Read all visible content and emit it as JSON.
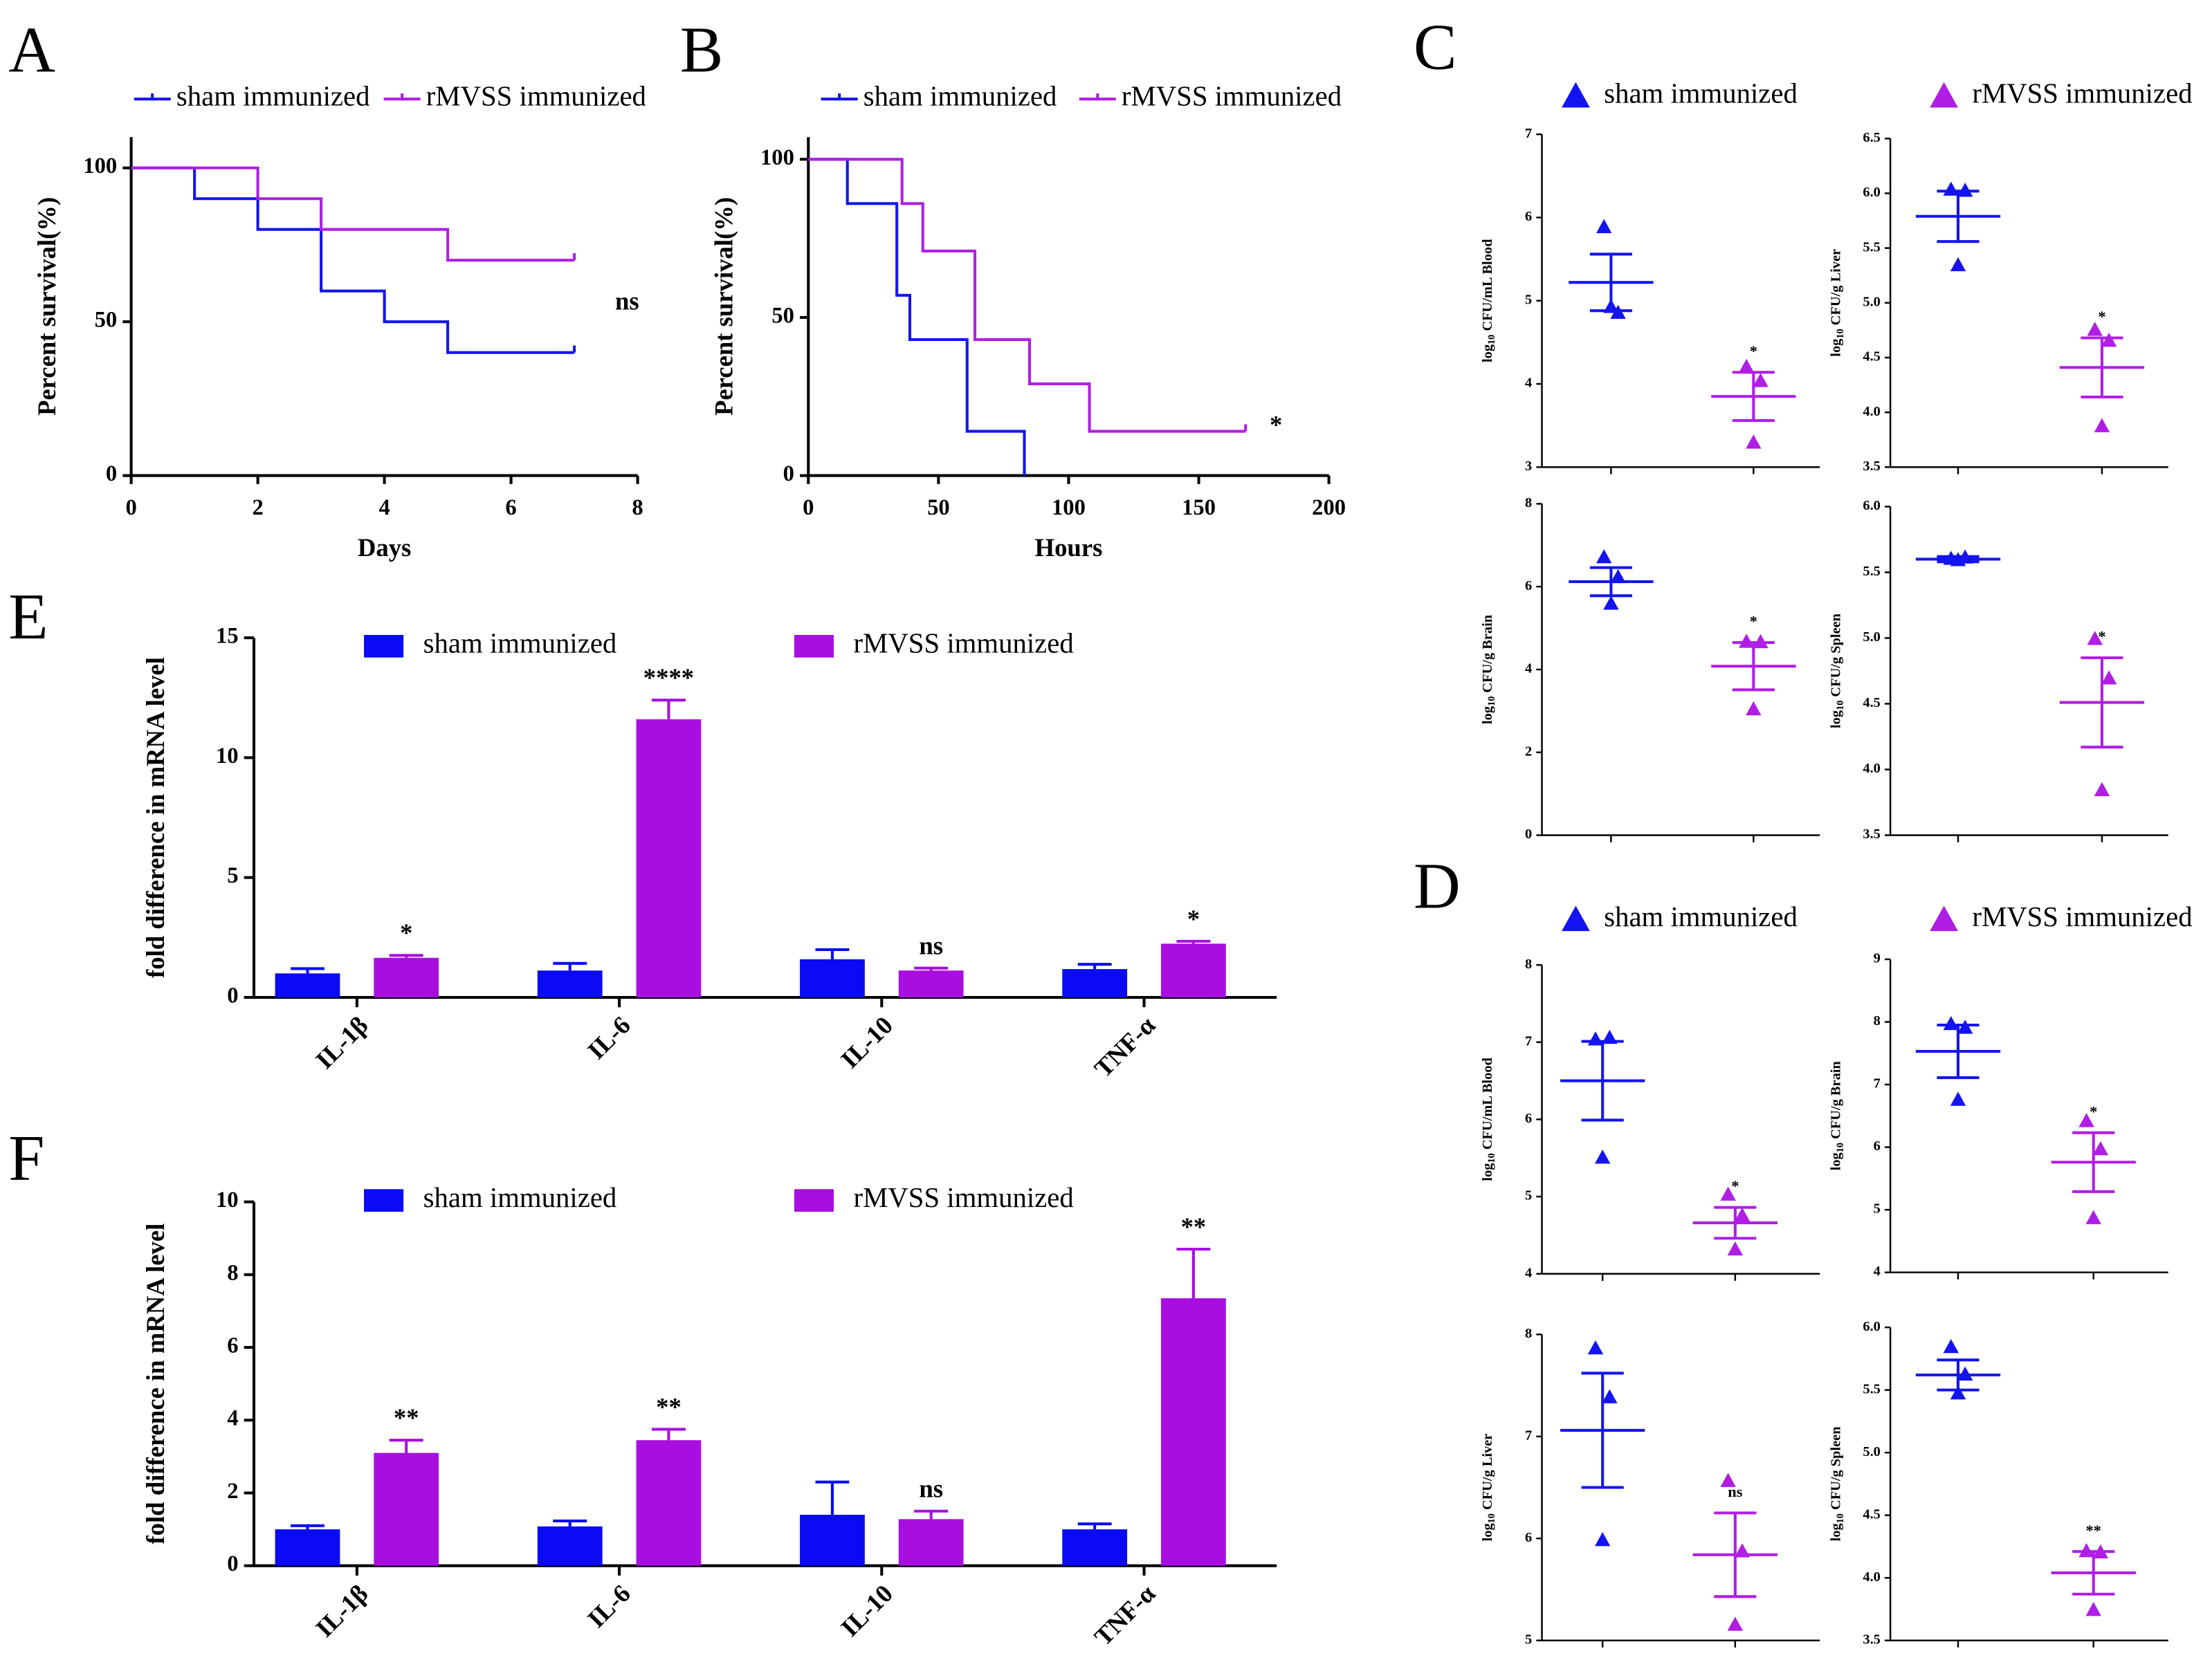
{
  "chart_data": [
    {
      "type": "step",
      "panel": "A",
      "xlabel": "Days",
      "ylabel": "Percent survival(%)",
      "xlim": [
        0,
        8
      ],
      "xticks": [
        0,
        2,
        4,
        6,
        8
      ],
      "ylim": [
        0,
        110
      ],
      "yticks": [
        0,
        50,
        100
      ],
      "annotation": "ns",
      "series": [
        {
          "name": "sham immunized",
          "color": "#1414f0",
          "x": [
            0,
            1,
            2,
            3,
            4,
            5,
            7
          ],
          "values": [
            100,
            90,
            80,
            60,
            50,
            40,
            40
          ]
        },
        {
          "name": "rMVSS immunized",
          "color": "#b01ee6",
          "x": [
            0,
            2,
            3,
            5,
            7
          ],
          "values": [
            100,
            90,
            80,
            70,
            70
          ]
        }
      ]
    },
    {
      "type": "step",
      "panel": "B",
      "xlabel": "Hours",
      "ylabel": "Percent survival(%)",
      "xlim": [
        0,
        200
      ],
      "xticks": [
        0,
        50,
        100,
        150,
        200
      ],
      "ylim": [
        0,
        107
      ],
      "yticks": [
        0,
        50,
        100
      ],
      "annotation": "*",
      "series": [
        {
          "name": "sham immunized",
          "color": "#1414f0",
          "x": [
            0,
            15,
            34,
            39,
            61,
            83
          ],
          "values": [
            100,
            86,
            57,
            43,
            14,
            0
          ]
        },
        {
          "name": "rMVSS immunized",
          "color": "#b01ee6",
          "x": [
            0,
            36,
            44,
            64,
            85,
            108,
            168
          ],
          "values": [
            100,
            86,
            71,
            43,
            29,
            14,
            14
          ]
        }
      ]
    },
    {
      "type": "dotplot",
      "panel": "C",
      "series": [
        {
          "name": "sham immunized",
          "color": "#1414f0"
        },
        {
          "name": "rMVSS immunized",
          "color": "#b01ee6"
        }
      ],
      "subplots": [
        {
          "ylabel": [
            "log",
            "10",
            " CFU/mL Blood"
          ],
          "ylim": [
            3,
            7
          ],
          "yticks": [
            3,
            4,
            5,
            6,
            7
          ],
          "groups": [
            {
              "values": [
                5.88,
                4.85,
                4.92
              ],
              "mean": 5.22,
              "sem": 0.34
            },
            {
              "values": [
                4.2,
                4.03,
                3.29
              ],
              "mean": 3.85,
              "sem": 0.29,
              "annotation": "*"
            }
          ]
        },
        {
          "ylabel": [
            "log",
            "10",
            " CFU/g Liver"
          ],
          "ylim": [
            3.5,
            6.5
          ],
          "yticks": [
            {
              "value": 3.5,
              "label": "3.5"
            },
            {
              "value": 4,
              "label": "4.0"
            },
            {
              "value": 4.5,
              "label": "4.5"
            },
            {
              "value": 5,
              "label": "5.0"
            },
            {
              "value": 5.5,
              "label": "5.5"
            },
            {
              "value": 6,
              "label": "6.0"
            },
            {
              "value": 6.5,
              "label": "6.5"
            }
          ],
          "groups": [
            {
              "values": [
                6.03,
                6.02,
                5.34
              ],
              "mean": 5.79,
              "sem": 0.23
            },
            {
              "values": [
                4.75,
                4.65,
                3.87
              ],
              "mean": 4.41,
              "sem": 0.27,
              "annotation": "*"
            }
          ]
        },
        {
          "ylabel": [
            "log",
            "10",
            " CFU/g Brain"
          ],
          "ylim": [
            0,
            8
          ],
          "yticks": [
            0,
            2,
            4,
            6,
            8
          ],
          "groups": [
            {
              "values": [
                6.7,
                6.22,
                5.58
              ],
              "mean": 6.12,
              "sem": 0.34
            },
            {
              "values": [
                4.66,
                4.65,
                3.03
              ],
              "mean": 4.08,
              "sem": 0.57,
              "annotation": "*"
            }
          ]
        },
        {
          "ylabel": [
            "log",
            "10",
            " CFU/g Spleen"
          ],
          "ylim": [
            3.5,
            6
          ],
          "yticks": [
            {
              "value": 3.5,
              "label": "3.5"
            },
            {
              "value": 4,
              "label": "4.0"
            },
            {
              "value": 4.5,
              "label": "4.5"
            },
            {
              "value": 5,
              "label": "5.0"
            },
            {
              "value": 5.5,
              "label": "5.5"
            },
            {
              "value": 6,
              "label": "6.0"
            }
          ],
          "groups": [
            {
              "values": [
                5.6,
                5.61,
                5.59
              ],
              "mean": 5.6,
              "sem": 0.02
            },
            {
              "values": [
                4.99,
                4.69,
                3.84
              ],
              "mean": 4.51,
              "sem": 0.34,
              "annotation": "*"
            }
          ]
        }
      ]
    },
    {
      "type": "dotplot",
      "panel": "D",
      "series": [
        {
          "name": "sham immunized",
          "color": "#1414f0"
        },
        {
          "name": "rMVSS immunized",
          "color": "#b01ee6"
        }
      ],
      "subplots": [
        {
          "ylabel": [
            "log",
            "10",
            " CFU/mL Blood"
          ],
          "ylim": [
            4,
            8
          ],
          "yticks": [
            4,
            5,
            6,
            7,
            8
          ],
          "groups": [
            {
              "values": [
                7.03,
                7.05,
                5.5
              ],
              "mean": 6.5,
              "sem": 0.51
            },
            {
              "values": [
                5.02,
                4.75,
                4.31
              ],
              "mean": 4.66,
              "sem": 0.2,
              "annotation": "*"
            }
          ]
        },
        {
          "ylabel": [
            "log",
            "10",
            " CFU/g Brain"
          ],
          "ylim": [
            4,
            9
          ],
          "yticks": [
            4,
            5,
            6,
            7,
            8,
            9
          ],
          "groups": [
            {
              "values": [
                7.96,
                7.9,
                6.75
              ],
              "mean": 7.53,
              "sem": 0.42
            },
            {
              "values": [
                6.41,
                5.96,
                4.86
              ],
              "mean": 5.76,
              "sem": 0.47,
              "annotation": "*"
            }
          ]
        },
        {
          "ylabel": [
            "log",
            "10",
            " CFU/g Liver"
          ],
          "ylim": [
            5,
            8
          ],
          "yticks": [
            5,
            6,
            7,
            8
          ],
          "groups": [
            {
              "values": [
                7.86,
                7.38,
                5.98
              ],
              "mean": 7.06,
              "sem": 0.56
            },
            {
              "values": [
                6.56,
                5.87,
                5.15
              ],
              "mean": 5.84,
              "sem": 0.41,
              "annotation": "ns"
            }
          ]
        },
        {
          "ylabel": [
            "log",
            "10",
            " CFU/g Spleen"
          ],
          "ylim": [
            3.5,
            6
          ],
          "yticks": [
            {
              "value": 3.5,
              "label": "3.5"
            },
            {
              "value": 4,
              "label": "4.0"
            },
            {
              "value": 4.5,
              "label": "4.5"
            },
            {
              "value": 5,
              "label": "5.0"
            },
            {
              "value": 5.5,
              "label": "5.5"
            },
            {
              "value": 6,
              "label": "6.0"
            }
          ],
          "groups": [
            {
              "values": [
                5.84,
                5.62,
                5.47
              ],
              "mean": 5.62,
              "sem": 0.12
            },
            {
              "values": [
                4.21,
                4.2,
                3.74
              ],
              "mean": 4.04,
              "sem": 0.17,
              "annotation": "**"
            }
          ]
        }
      ]
    },
    {
      "type": "bar",
      "panel": "E",
      "ylabel": "fold difference in mRNA level",
      "categories": [
        "IL-1β",
        "IL-6",
        "IL-10",
        "TNF-α"
      ],
      "ylim": [
        0,
        15
      ],
      "yticks": [
        0,
        5,
        10,
        15
      ],
      "series": [
        {
          "name": "sham immunized",
          "color": "#0a0af5",
          "values": [
            1.0,
            1.12,
            1.59,
            1.18
          ],
          "errors": [
            0.2,
            0.3,
            0.4,
            0.2
          ]
        },
        {
          "name": "rMVSS immunized",
          "color": "#a80ee0",
          "values": [
            1.65,
            11.6,
            1.12,
            2.24
          ],
          "errors": [
            0.1,
            0.8,
            0.1,
            0.1
          ],
          "annotations": [
            "*",
            "****",
            "ns",
            "*"
          ]
        }
      ]
    },
    {
      "type": "bar",
      "panel": "F",
      "ylabel": "fold difference in mRNA level",
      "categories": [
        "IL-1β",
        "IL-6",
        "IL-10",
        "TNF-α"
      ],
      "ylim": [
        0,
        10
      ],
      "yticks": [
        0,
        2,
        4,
        6,
        8,
        10
      ],
      "series": [
        {
          "name": "sham immunized",
          "color": "#0a0af5",
          "values": [
            1.0,
            1.08,
            1.4,
            1.0
          ],
          "errors": [
            0.1,
            0.15,
            0.9,
            0.15
          ]
        },
        {
          "name": "rMVSS immunized",
          "color": "#a80ee0",
          "values": [
            3.1,
            3.45,
            1.28,
            7.35
          ],
          "errors": [
            0.35,
            0.3,
            0.22,
            1.35
          ],
          "annotations": [
            "**",
            "**",
            "ns",
            "**"
          ]
        }
      ]
    }
  ]
}
